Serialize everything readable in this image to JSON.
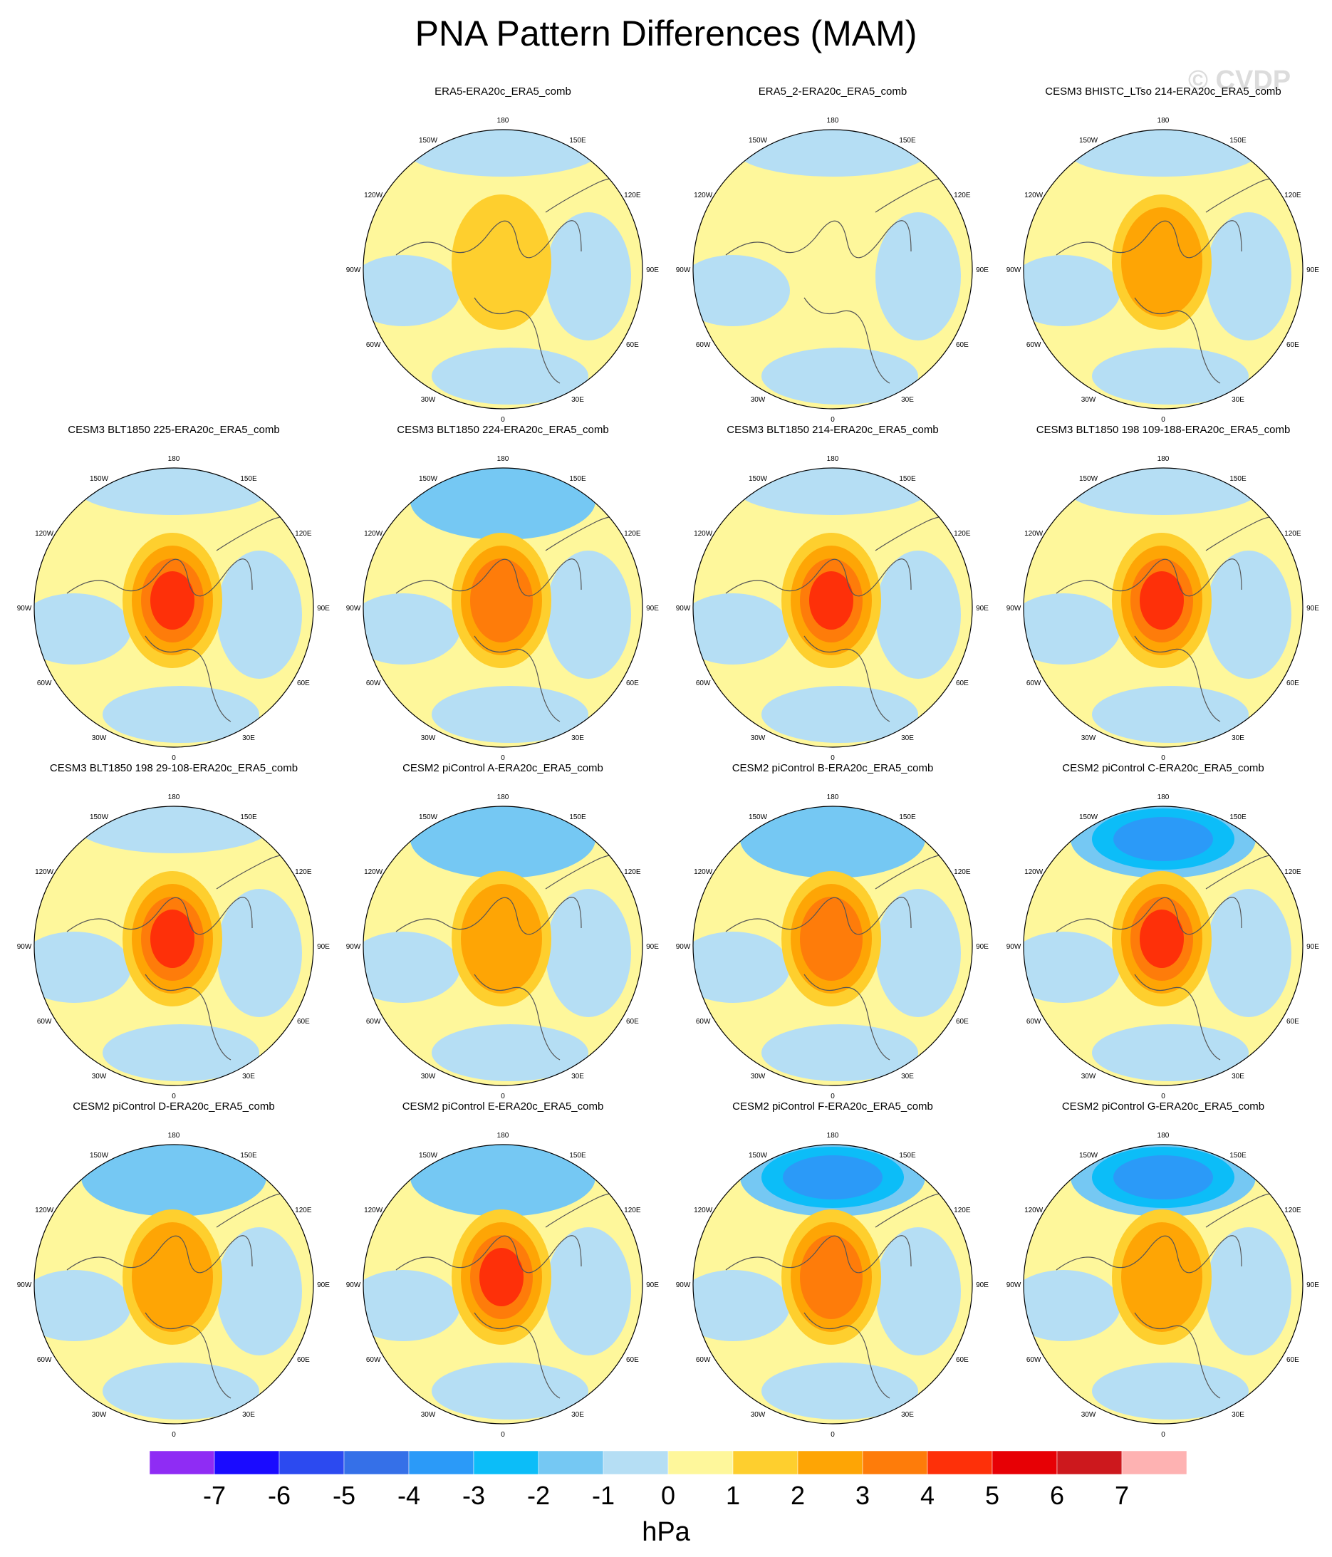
{
  "title": "PNA Pattern Differences (MAM)",
  "watermark": "© CVDP",
  "units": "hPa",
  "longitude_labels": {
    "lon_180": "180",
    "lon_150e": "150E",
    "lon_120e": "120E",
    "lon_90e": "90E",
    "lon_60e": "60E",
    "lon_30e": "30E",
    "lon_0": "0",
    "lon_30w": "30W",
    "lon_60w": "60W",
    "lon_90w": "90W",
    "lon_120w": "120W",
    "lon_150w": "150W"
  },
  "colorbar": {
    "levels": [
      "-7",
      "-6",
      "-5",
      "-4",
      "-3",
      "-2",
      "-1",
      "0",
      "1",
      "2",
      "3",
      "4",
      "5",
      "6",
      "7"
    ],
    "colors": [
      "#8f2cf4",
      "#1a0bff",
      "#2c4af0",
      "#3570e8",
      "#2b9af8",
      "#0cbdf8",
      "#75c8f3",
      "#b5def4",
      "#fef79b",
      "#fecf2e",
      "#fea505",
      "#fe7c0a",
      "#fe3009",
      "#e70005",
      "#cd181d",
      "#feb2b2"
    ]
  },
  "panels": [
    {
      "title": "ERA5-ERA20c_ERA5_comb",
      "arctic": 1,
      "pacific": 0
    },
    {
      "title": "ERA5_2-ERA20c_ERA5_comb",
      "arctic": 0.5,
      "pacific": 0
    },
    {
      "title": "CESM3 BHISTC_LTso 214-ERA20c_ERA5_comb",
      "arctic": 2,
      "pacific": 0
    },
    {
      "title": "CESM3 BLT1850 225-ERA20c_ERA5_comb",
      "arctic": 4,
      "pacific": 0
    },
    {
      "title": "CESM3 BLT1850 224-ERA20c_ERA5_comb",
      "arctic": 3,
      "pacific": -1
    },
    {
      "title": "CESM3 BLT1850 214-ERA20c_ERA5_comb",
      "arctic": 4,
      "pacific": 0
    },
    {
      "title": "CESM3 BLT1850 198 109-188-ERA20c_ERA5_comb",
      "arctic": 4,
      "pacific": 0
    },
    {
      "title": "CESM3 BLT1850 198 29-108-ERA20c_ERA5_comb",
      "arctic": 4,
      "pacific": 0
    },
    {
      "title": "CESM2 piControl A-ERA20c_ERA5_comb",
      "arctic": 2,
      "pacific": -1
    },
    {
      "title": "CESM2 piControl B-ERA20c_ERA5_comb",
      "arctic": 3,
      "pacific": -1
    },
    {
      "title": "CESM2 piControl C-ERA20c_ERA5_comb",
      "arctic": 4,
      "pacific": -3
    },
    {
      "title": "CESM2 piControl D-ERA20c_ERA5_comb",
      "arctic": 2,
      "pacific": -1
    },
    {
      "title": "CESM2 piControl E-ERA20c_ERA5_comb",
      "arctic": 4,
      "pacific": -1
    },
    {
      "title": "CESM2 piControl F-ERA20c_ERA5_comb",
      "arctic": 3,
      "pacific": -3
    },
    {
      "title": "CESM2 piControl G-ERA20c_ERA5_comb",
      "arctic": 2,
      "pacific": -3
    }
  ]
}
